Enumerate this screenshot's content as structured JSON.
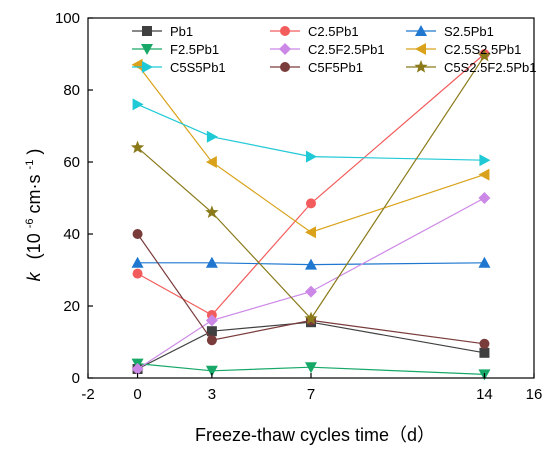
{
  "chart_data": {
    "type": "line",
    "x": [
      0,
      3,
      7,
      14
    ],
    "xlim": [
      -2,
      16
    ],
    "ylim": [
      0,
      100
    ],
    "xticks": [
      "-2",
      "0",
      "3",
      "7",
      "14",
      "16"
    ],
    "yticks": [
      "0",
      "20",
      "40",
      "60",
      "80",
      "100"
    ],
    "xlabel": "Freeze-thaw cycles time（d）",
    "ylabel": {
      "var": "k",
      "open": "(10",
      "exp1": "-6",
      "mid": "cm·s",
      "exp2": "-1",
      "close": ")"
    },
    "legend_position": "top",
    "series": [
      {
        "name": "Pb1",
        "color": "#404040",
        "marker": "square",
        "values": [
          2.5,
          13,
          15.5,
          7
        ]
      },
      {
        "name": "C2.5Pb1",
        "color": "#f25c5c",
        "marker": "circle",
        "values": [
          29,
          17.5,
          48.5,
          90
        ]
      },
      {
        "name": "S2.5Pb1",
        "color": "#1f77d0",
        "marker": "triangle-up",
        "values": [
          32,
          32,
          31.5,
          32
        ]
      },
      {
        "name": "F2.5Pb1",
        "color": "#17a868",
        "marker": "triangle-down",
        "values": [
          4,
          2,
          3,
          1
        ]
      },
      {
        "name": "C2.5F2.5Pb1",
        "color": "#cc88e6",
        "marker": "diamond",
        "values": [
          2.5,
          16,
          24,
          50
        ]
      },
      {
        "name": "C2.5S2.5Pb1",
        "color": "#d9a21a",
        "marker": "triangle-left",
        "values": [
          87,
          60,
          40.5,
          56.5
        ]
      },
      {
        "name": "C5S5Pb1",
        "color": "#1fc9d6",
        "marker": "triangle-right",
        "values": [
          76,
          67,
          61.5,
          60.5
        ]
      },
      {
        "name": "C5F5Pb1",
        "color": "#7a3b3b",
        "marker": "circle",
        "values": [
          40,
          10.5,
          16,
          9.5
        ]
      },
      {
        "name": "C5S2.5F2.5Pb1",
        "color": "#8a7a1a",
        "marker": "star",
        "values": [
          64,
          46,
          16.5,
          89.5
        ]
      }
    ]
  }
}
